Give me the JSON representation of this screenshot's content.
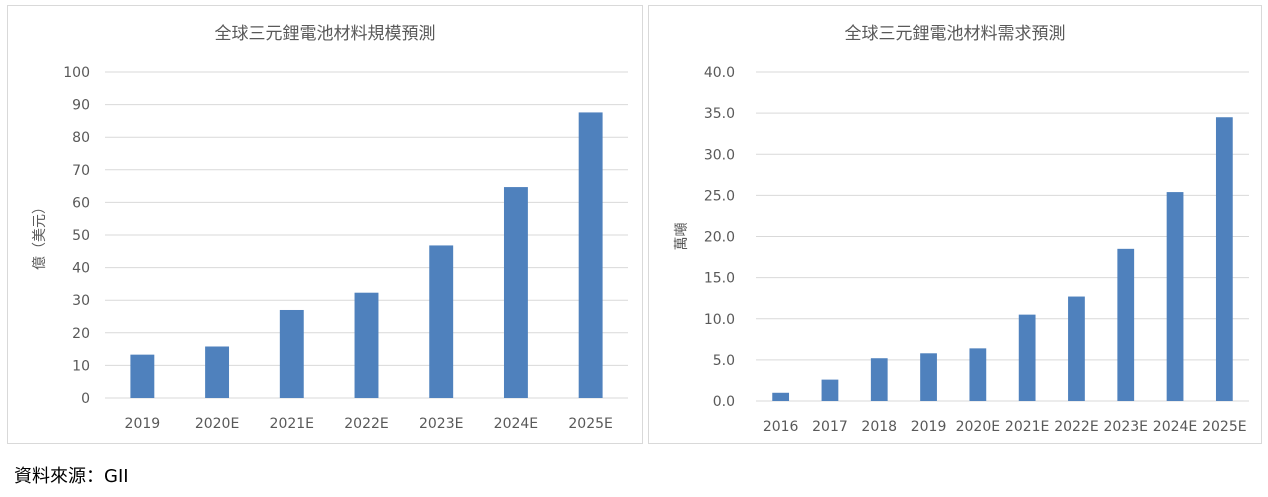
{
  "source_note": "資料來源：GII",
  "colors": {
    "bar": "#4f81bd",
    "grid": "#d9d9d9",
    "text": "#595959"
  },
  "chart_data": [
    {
      "type": "bar",
      "title": "全球三元鋰電池材料規模預測",
      "ylabel": "億（美元）",
      "xlabel": "",
      "categories": [
        "2019",
        "2020E",
        "2021E",
        "2022E",
        "2023E",
        "2024E",
        "2025E"
      ],
      "values": [
        13.3,
        15.8,
        27.0,
        32.3,
        46.8,
        64.7,
        87.6
      ],
      "ylim": [
        0,
        100
      ],
      "yticks": [
        "0",
        "10",
        "20",
        "30",
        "40",
        "50",
        "60",
        "70",
        "80",
        "90",
        "100"
      ],
      "grid": true,
      "legend": "none"
    },
    {
      "type": "bar",
      "title": "全球三元鋰電池材料需求預測",
      "ylabel": "萬噸",
      "xlabel": "",
      "categories": [
        "2016",
        "2017",
        "2018",
        "2019",
        "2020E",
        "2021E",
        "2022E",
        "2023E",
        "2024E",
        "2025E"
      ],
      "values": [
        1.0,
        2.6,
        5.2,
        5.8,
        6.4,
        10.5,
        12.7,
        18.5,
        25.4,
        34.5
      ],
      "ylim": [
        0,
        40
      ],
      "yticks": [
        "0.0",
        "5.0",
        "10.0",
        "15.0",
        "20.0",
        "25.0",
        "30.0",
        "35.0",
        "40.0"
      ],
      "grid": true,
      "legend": "none"
    }
  ]
}
